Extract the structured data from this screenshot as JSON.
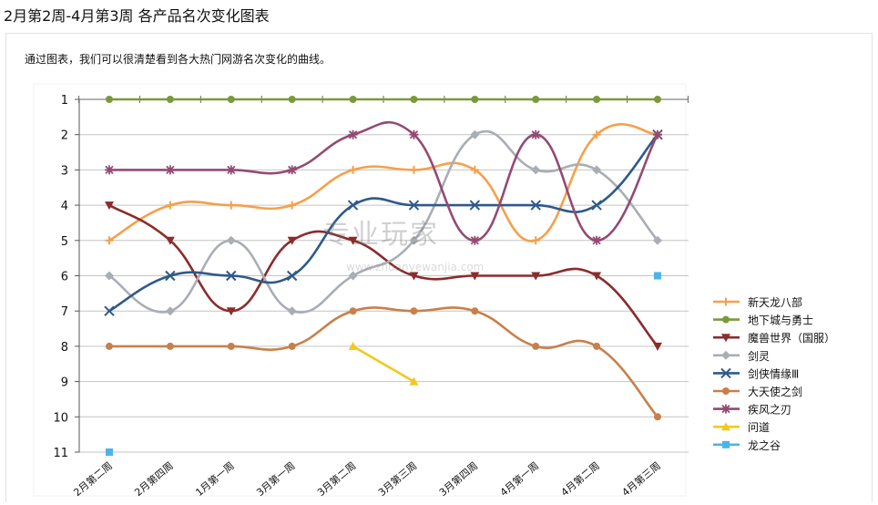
{
  "page": {
    "title": "2月第2周-4月第3周 各产品名次变化图表",
    "intro": "通过图表，我们可以很清楚看到各大热门网游名次变化的曲线。"
  },
  "watermark": {
    "text": "专业玩家",
    "sub": "www.zhuanyewanjia.com"
  },
  "chart_data": {
    "type": "line",
    "categories": [
      "2月第二周",
      "2月第四周",
      "1月第一周",
      "3月第一周",
      "3月第二周",
      "3月第三周",
      "3月第四周",
      "4月第一周",
      "4月第二周",
      "4月第三周"
    ],
    "ylim": [
      1,
      11
    ],
    "y_reversed": true,
    "yticks": [
      1,
      2,
      3,
      4,
      5,
      6,
      7,
      8,
      9,
      10,
      11
    ],
    "grid": true,
    "legend_position": "right",
    "series": [
      {
        "name": "新天龙八部",
        "color": "#f5a04a",
        "marker": "plus",
        "values": [
          5,
          4,
          4,
          4,
          3,
          3,
          3,
          5,
          2,
          2
        ]
      },
      {
        "name": "地下城与勇士",
        "color": "#7a9a3a",
        "marker": "circle",
        "values": [
          1,
          1,
          1,
          1,
          1,
          1,
          1,
          1,
          1,
          1
        ]
      },
      {
        "name": "魔兽世界（国服）",
        "color": "#8b2c2c",
        "marker": "triangle-down",
        "values": [
          4,
          5,
          7,
          5,
          5,
          6,
          6,
          6,
          6,
          8
        ]
      },
      {
        "name": "剑灵",
        "color": "#a9adb5",
        "marker": "diamond",
        "values": [
          6,
          7,
          5,
          7,
          6,
          5,
          2,
          3,
          3,
          5
        ]
      },
      {
        "name": "剑侠情缘Ⅲ",
        "color": "#2e5a8a",
        "marker": "x",
        "values": [
          7,
          6,
          6,
          6,
          4,
          4,
          4,
          4,
          4,
          2
        ]
      },
      {
        "name": "大天使之剑",
        "color": "#c8804a",
        "marker": "circle",
        "values": [
          8,
          8,
          8,
          8,
          7,
          7,
          7,
          8,
          8,
          10
        ]
      },
      {
        "name": "疾风之刃",
        "color": "#944a73",
        "marker": "star",
        "values": [
          3,
          3,
          3,
          3,
          2,
          2,
          5,
          2,
          5,
          2
        ]
      },
      {
        "name": "问道",
        "color": "#f2c81e",
        "marker": "triangle-up",
        "values": [
          null,
          null,
          null,
          null,
          8,
          9,
          null,
          null,
          null,
          null
        ]
      },
      {
        "name": "龙之谷",
        "color": "#4cb3e6",
        "marker": "square",
        "values": [
          11,
          null,
          null,
          null,
          null,
          null,
          null,
          null,
          null,
          6
        ]
      }
    ]
  }
}
